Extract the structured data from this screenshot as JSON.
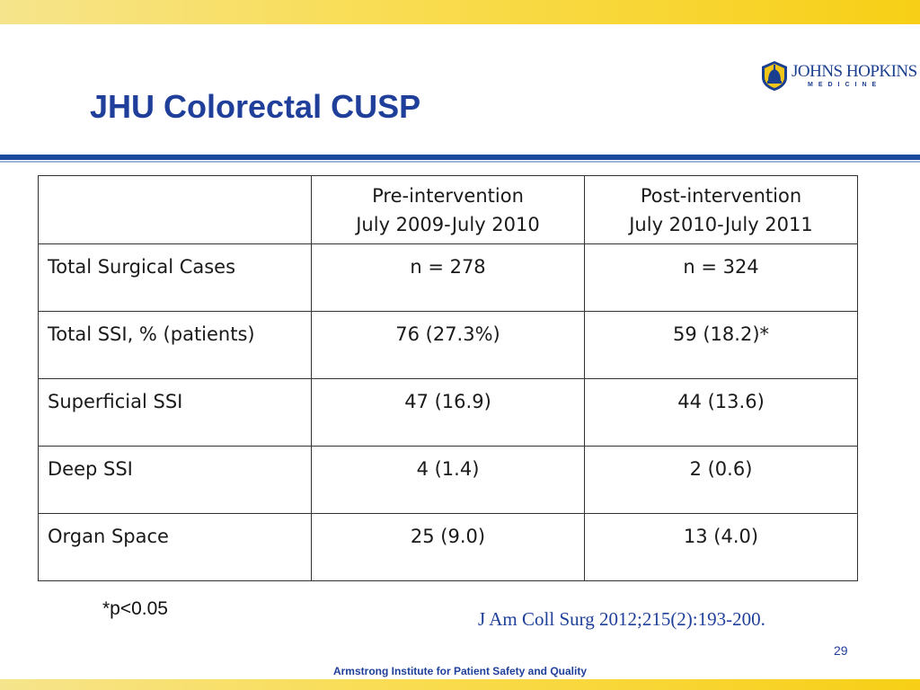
{
  "slide": {
    "title": "JHU Colorectal CUSP",
    "logo": {
      "name": "JOHNS HOPKINS",
      "sub": "MEDICINE"
    },
    "table": {
      "headers": [
        "",
        "Pre-intervention\nJuly 2009-July 2010",
        "Post-intervention\nJuly 2010-July 2011"
      ],
      "header_lines": [
        {
          "line1": "Pre-intervention",
          "line2": "July 2009-July 2010"
        },
        {
          "line1": "Post-intervention",
          "line2": "July 2010-July 2011"
        }
      ],
      "rows": [
        {
          "label": "Total Surgical Cases",
          "pre": "n = 278",
          "post": "n = 324"
        },
        {
          "label": "Total SSI, % (patients)",
          "pre": "76 (27.3%)",
          "post": "59 (18.2)*"
        },
        {
          "label": "Superficial SSI",
          "pre": "47 (16.9)",
          "post": "44 (13.6)"
        },
        {
          "label": "Deep SSI",
          "pre": "4 (1.4)",
          "post": "2 (0.6)"
        },
        {
          "label": "Organ Space",
          "pre": "25 (9.0)",
          "post": "13 (4.0)"
        }
      ]
    },
    "footnote": "*p<0.05",
    "citation": "J Am Coll Surg 2012;215(2):193-200.",
    "page_number": "29",
    "footer": "Armstrong Institute for Patient Safety and Quality"
  },
  "colors": {
    "title_blue": "#1f3f9a",
    "rule_blue": "#1a4a9c",
    "band_yellow": "#f7cf16"
  }
}
